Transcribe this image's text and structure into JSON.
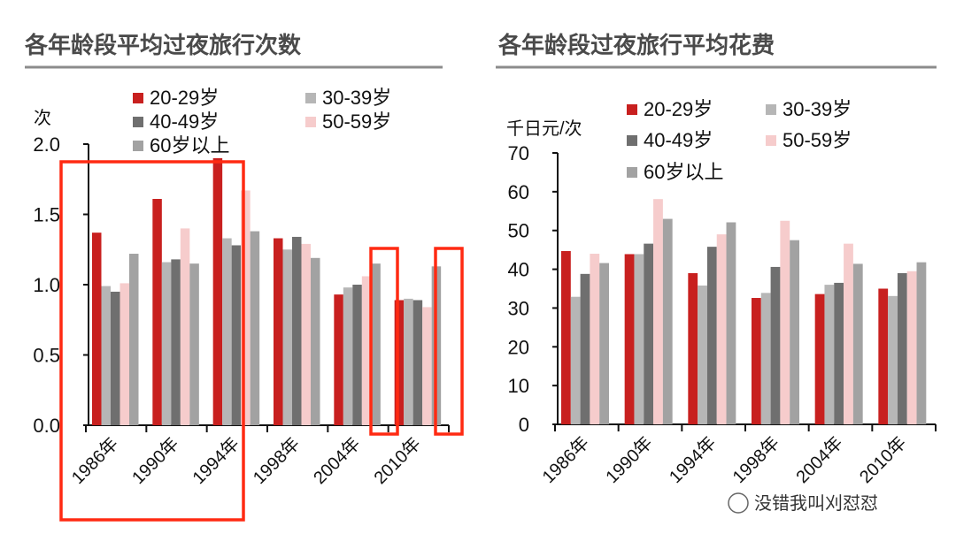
{
  "colors": {
    "20-29岁": "#c8201f",
    "30-39岁": "#b6b6b6",
    "40-49岁": "#6f6f6f",
    "50-59岁": "#f6cccc",
    "60岁以上": "#a2a2a2",
    "highlight": "#ff2a12",
    "title_rule": "#8c8c8c"
  },
  "watermark": "没错我叫刈怼怼",
  "chart_data": [
    {
      "type": "bar",
      "title": "各年龄段平均过夜旅行次数",
      "ylabel": "次",
      "xlabel": "",
      "ylim": [
        0,
        2.0
      ],
      "yticks": [
        "0.0",
        "0.5",
        "1.0",
        "1.5",
        "2.0"
      ],
      "categories": [
        "1986年",
        "1990年",
        "1994年",
        "1998年",
        "2004年",
        "2010年"
      ],
      "legend": "top",
      "series": [
        {
          "name": "20-29岁",
          "values": [
            1.37,
            1.61,
            1.9,
            1.33,
            0.93,
            0.89
          ]
        },
        {
          "name": "30-39岁",
          "values": [
            0.99,
            1.16,
            1.33,
            1.25,
            0.98,
            0.9
          ]
        },
        {
          "name": "40-49岁",
          "values": [
            0.95,
            1.18,
            1.28,
            1.34,
            1.0,
            0.89
          ]
        },
        {
          "name": "50-59岁",
          "values": [
            1.01,
            1.4,
            1.67,
            1.29,
            1.06,
            0.84
          ]
        },
        {
          "name": "60岁以上",
          "values": [
            1.22,
            1.15,
            1.38,
            1.19,
            1.15,
            1.13
          ]
        }
      ],
      "highlights": [
        "1986年–1994年 all groups",
        "2004年 50-59岁/60岁以上",
        "2010年 50-59岁/60岁以上"
      ]
    },
    {
      "type": "bar",
      "title": "各年龄段过夜旅行平均花费",
      "ylabel": "千日元/次",
      "xlabel": "",
      "ylim": [
        0,
        70
      ],
      "yticks": [
        "0",
        "10",
        "20",
        "30",
        "40",
        "50",
        "60",
        "70"
      ],
      "categories": [
        "1986年",
        "1990年",
        "1994年",
        "1998年",
        "2004年",
        "2010年"
      ],
      "legend": "top",
      "series": [
        {
          "name": "20-29岁",
          "values": [
            44.7,
            43.9,
            39.0,
            32.6,
            33.6,
            35.0
          ]
        },
        {
          "name": "30-39岁",
          "values": [
            32.9,
            43.9,
            35.8,
            33.9,
            36.0,
            33.1
          ]
        },
        {
          "name": "40-49岁",
          "values": [
            38.8,
            46.6,
            45.8,
            40.6,
            36.5,
            39.0
          ]
        },
        {
          "name": "50-59岁",
          "values": [
            44.0,
            58.1,
            49.0,
            52.5,
            46.6,
            39.5
          ]
        },
        {
          "name": "60岁以上",
          "values": [
            41.6,
            53.0,
            52.1,
            47.5,
            41.4,
            41.8
          ]
        }
      ]
    }
  ]
}
